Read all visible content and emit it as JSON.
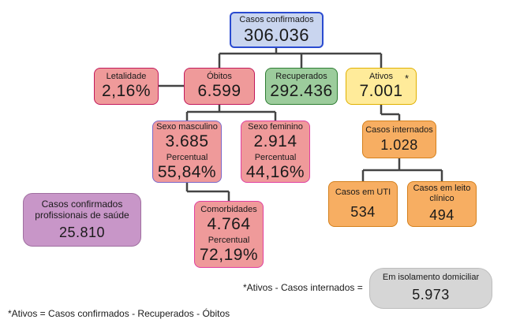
{
  "boxes": {
    "casos_confirmados": {
      "label": "Casos confirmados",
      "value": "306.036"
    },
    "letalidade": {
      "label": "Letalidade",
      "value": "2,16%"
    },
    "obitos": {
      "label": "Óbitos",
      "value": "6.599"
    },
    "recuperados": {
      "label": "Recuperados",
      "value": "292.436"
    },
    "ativos": {
      "label": "Ativos",
      "value": "7.001",
      "marker": "*"
    },
    "sexo_masculino": {
      "label": "Sexo masculino",
      "value": "3.685",
      "pct_label": "Percentual",
      "pct_value": "55,84%"
    },
    "sexo_feminino": {
      "label": "Sexo feminino",
      "value": "2.914",
      "pct_label": "Percentual",
      "pct_value": "44,16%"
    },
    "comorbidades": {
      "label": "Comorbidades",
      "value": "4.764",
      "pct_label": "Percentual",
      "pct_value": "72,19%"
    },
    "profissionais": {
      "label_line1": "Casos confirmados",
      "label_line2": "profissionais de saúde",
      "value": "25.810"
    },
    "casos_internados": {
      "label": "Casos internados",
      "value": "1.028"
    },
    "casos_uti": {
      "label": "Casos em UTI",
      "value": "534"
    },
    "casos_leito": {
      "label_line1": "Casos em leito",
      "label_line2": "clínico",
      "value": "494"
    },
    "isolamento": {
      "label": "Em isolamento domiciliar",
      "value": "5.973"
    }
  },
  "equation_text": "*Ativos - Casos internados =",
  "footnote": "*Ativos = Casos confirmados - Recuperados - Óbitos",
  "colors": {
    "connector": "#444444",
    "confirmados_fill": "#c9d5ef",
    "confirmados_border": "#2a4bd0",
    "obitos_fill": "#ef9a9a",
    "recuperados_fill": "#9ccc9c",
    "ativos_fill": "#ffeb9a",
    "internados_fill": "#f7ae62",
    "profissionais_fill": "#c896c8",
    "isolamento_fill": "#d6d6d6"
  }
}
